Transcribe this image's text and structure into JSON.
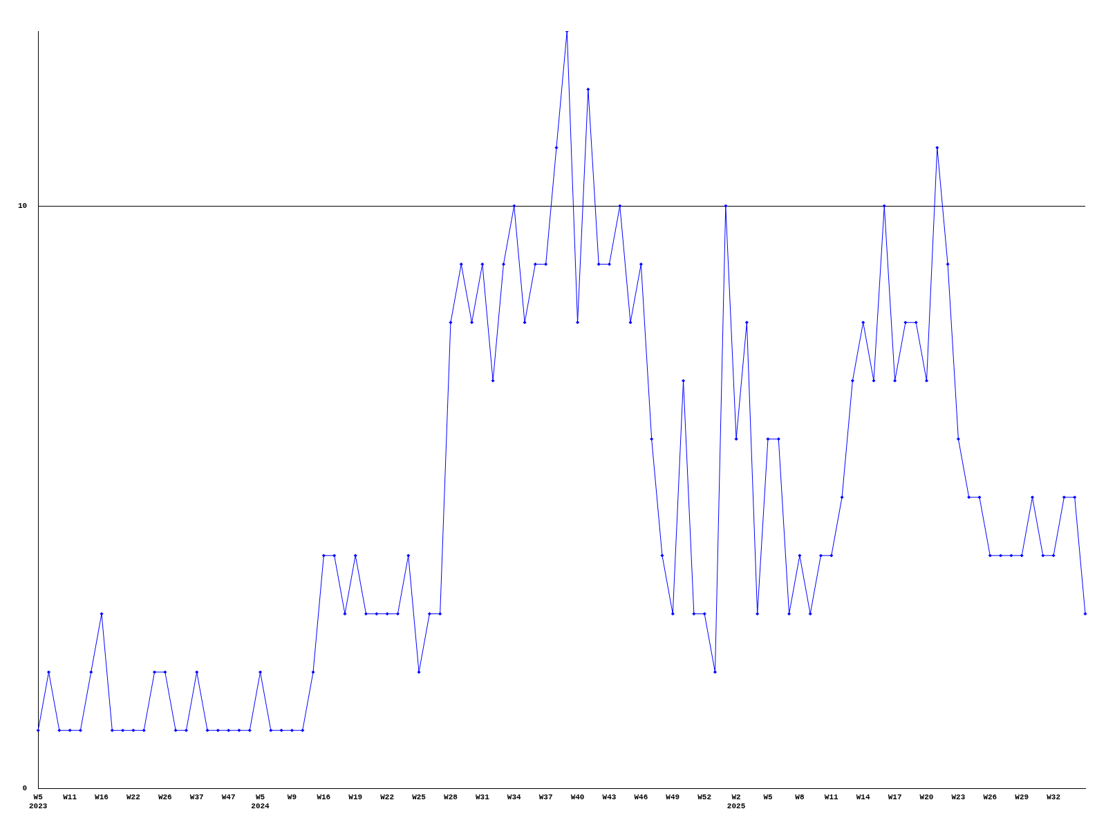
{
  "chart_data": {
    "type": "line",
    "categories": [
      "W5\n2023",
      null,
      null,
      "W11",
      null,
      null,
      "W16",
      null,
      null,
      "W22",
      null,
      null,
      "W26",
      null,
      null,
      "W37",
      null,
      null,
      "W47",
      null,
      null,
      "W5\n2024",
      null,
      null,
      "W9",
      null,
      null,
      "W16",
      null,
      null,
      "W19",
      null,
      null,
      "W22",
      null,
      null,
      "W25",
      null,
      null,
      "W28",
      null,
      null,
      "W31",
      null,
      null,
      "W34",
      null,
      null,
      "W37",
      null,
      null,
      "W40",
      null,
      null,
      "W43",
      null,
      null,
      "W46",
      null,
      null,
      "W49",
      null,
      null,
      "W52",
      null,
      null,
      "W2\n2025",
      null,
      null,
      "W5",
      null,
      null,
      "W8",
      null,
      null,
      "W11",
      null,
      null,
      "W14",
      null,
      null,
      "W17",
      null,
      null,
      "W20",
      null,
      null,
      "W23",
      null,
      null,
      "W26",
      null,
      null,
      "W29",
      null,
      null,
      "W32",
      null,
      null,
      null
    ],
    "series": [
      {
        "color": "#0000ff",
        "values": [
          1,
          2,
          1,
          1,
          1,
          2,
          3,
          1,
          1,
          1,
          1,
          2,
          2,
          1,
          1,
          2,
          1,
          1,
          1,
          1,
          1,
          2,
          1,
          1,
          1,
          1,
          2,
          4,
          4,
          3,
          4,
          3,
          3,
          3,
          3,
          4,
          2,
          3,
          3,
          8,
          9,
          8,
          9,
          7,
          9,
          10,
          8,
          9,
          9,
          11,
          13,
          8,
          12,
          9,
          9,
          10,
          8,
          9,
          6,
          4,
          3,
          7,
          3,
          3,
          2,
          10,
          6,
          8,
          3,
          6,
          6,
          3,
          4,
          3,
          4,
          4,
          5,
          7,
          8,
          7,
          10,
          7,
          8,
          8,
          7,
          11,
          9,
          6,
          5,
          5,
          4,
          4,
          4,
          4,
          5,
          4,
          4,
          5,
          5,
          3
        ]
      }
    ],
    "ylim": [
      0,
      13
    ],
    "yticks": [
      0,
      10
    ],
    "grid": "y",
    "marker": "diamond",
    "line_style": "solid",
    "legend": false
  }
}
